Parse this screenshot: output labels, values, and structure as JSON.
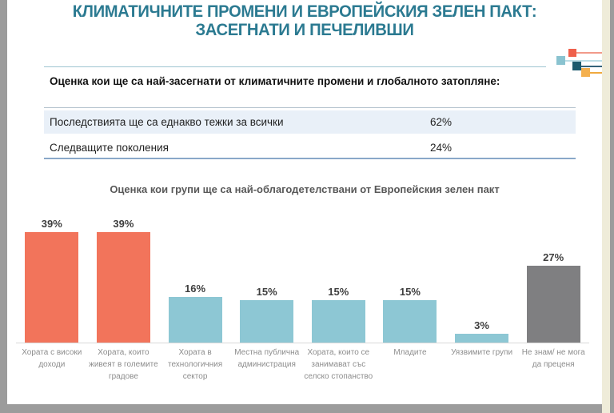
{
  "slide": {
    "title_line1": "КЛИМАТИЧНИТЕ ПРОМЕНИ И ЕВРОПЕЙСКИЯ ЗЕЛЕН ПАКТ:",
    "title_line2": "ЗАСЕГНАТИ И ПЕЧЕЛИВШИ",
    "title_color": "#2b7a91",
    "background_color": "#ffffff",
    "frame_color": "#9c9c9c",
    "right_strip_color": "#efecd9"
  },
  "assessment": {
    "header": "Оценка кои ще са най-засегнати от климатичните промени и глобалното затопляне:",
    "rows": [
      {
        "label": "Последствията ще са еднакво тежки за всички",
        "value": "62%"
      },
      {
        "label": "Следващите поколения",
        "value": "24%"
      }
    ],
    "highlight_row_color": "#e9f0f8",
    "bottom_rule_color": "#8aa8c9"
  },
  "chart_data": {
    "type": "bar",
    "title": "Оценка кои групи ще са най-облагодетелствани от Европейския зелен пакт",
    "categories": [
      "Хората с високи доходи",
      "Хората, които живеят в големите градове",
      "Хората в технологичния сектор",
      "Местна публична администрация",
      "Хората, които се занимават със селско стопанство",
      "Младите",
      "Уязвимите групи",
      "Не знам/ не мога да преценя"
    ],
    "values": [
      39,
      39,
      16,
      15,
      15,
      15,
      3,
      27
    ],
    "value_suffix": "%",
    "bar_colors": [
      "#f2745b",
      "#f2745b",
      "#8dc7d4",
      "#8dc7d4",
      "#8dc7d4",
      "#8dc7d4",
      "#8dc7d4",
      "#7f7f81"
    ],
    "xlabel": "",
    "ylabel": "",
    "ylim": [
      0,
      45
    ],
    "grid": false,
    "legend": "none",
    "data_labels": true
  },
  "decoration": {
    "squares": [
      {
        "name": "red-square",
        "color": "#ef604b",
        "line_color": "#f29a8a"
      },
      {
        "name": "lightblue-square",
        "color": "#8ac3d0",
        "line_color": "#bcdde5"
      },
      {
        "name": "darkteal-square",
        "color": "#1c5a6d",
        "line_color": "#35637a"
      },
      {
        "name": "orange-square",
        "color": "#f4b04e",
        "line_color": "#f0a93e"
      }
    ]
  }
}
